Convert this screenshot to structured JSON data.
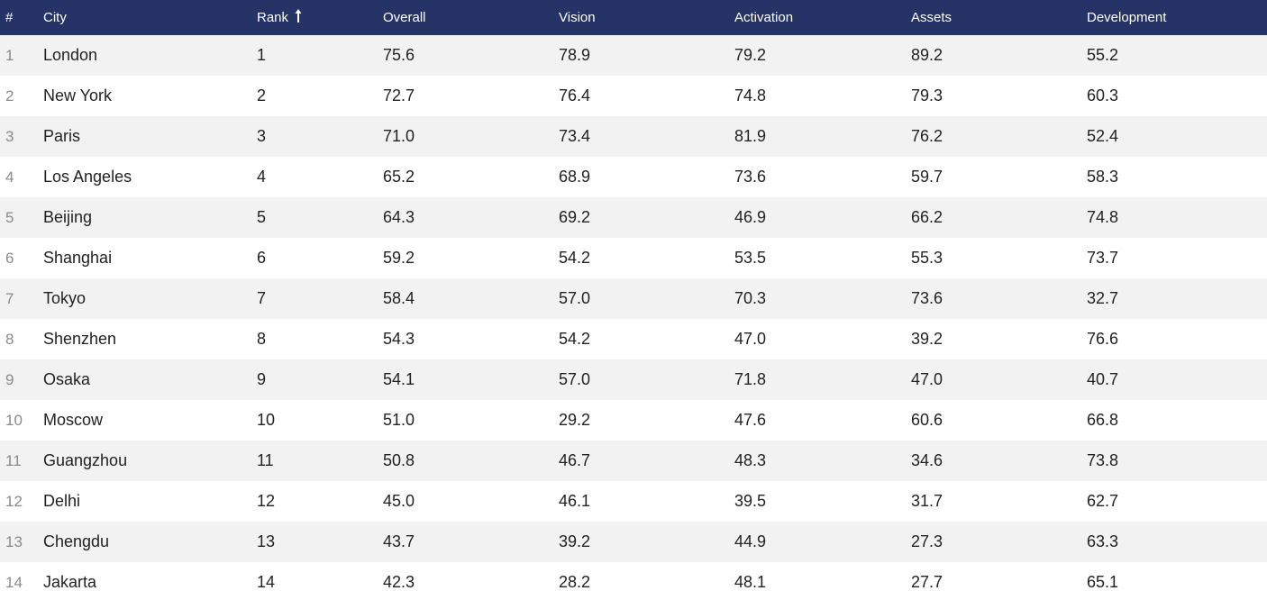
{
  "table": {
    "columns": {
      "index": "#",
      "city": "City",
      "rank": "Rank",
      "overall": "Overall",
      "vision": "Vision",
      "activation": "Activation",
      "assets": "Assets",
      "development": "Development"
    },
    "sort_icon": "arrow-up-icon",
    "header_color": "#253366",
    "rows": [
      {
        "index": "1",
        "city": "London",
        "rank": "1",
        "overall": "75.6",
        "vision": "78.9",
        "activation": "79.2",
        "assets": "89.2",
        "development": "55.2"
      },
      {
        "index": "2",
        "city": "New York",
        "rank": "2",
        "overall": "72.7",
        "vision": "76.4",
        "activation": "74.8",
        "assets": "79.3",
        "development": "60.3"
      },
      {
        "index": "3",
        "city": "Paris",
        "rank": "3",
        "overall": "71.0",
        "vision": "73.4",
        "activation": "81.9",
        "assets": "76.2",
        "development": "52.4"
      },
      {
        "index": "4",
        "city": "Los Angeles",
        "rank": "4",
        "overall": "65.2",
        "vision": "68.9",
        "activation": "73.6",
        "assets": "59.7",
        "development": "58.3"
      },
      {
        "index": "5",
        "city": "Beijing",
        "rank": "5",
        "overall": "64.3",
        "vision": "69.2",
        "activation": "46.9",
        "assets": "66.2",
        "development": "74.8"
      },
      {
        "index": "6",
        "city": "Shanghai",
        "rank": "6",
        "overall": "59.2",
        "vision": "54.2",
        "activation": "53.5",
        "assets": "55.3",
        "development": "73.7"
      },
      {
        "index": "7",
        "city": "Tokyo",
        "rank": "7",
        "overall": "58.4",
        "vision": "57.0",
        "activation": "70.3",
        "assets": "73.6",
        "development": "32.7"
      },
      {
        "index": "8",
        "city": "Shenzhen",
        "rank": "8",
        "overall": "54.3",
        "vision": "54.2",
        "activation": "47.0",
        "assets": "39.2",
        "development": "76.6"
      },
      {
        "index": "9",
        "city": "Osaka",
        "rank": "9",
        "overall": "54.1",
        "vision": "57.0",
        "activation": "71.8",
        "assets": "47.0",
        "development": "40.7"
      },
      {
        "index": "10",
        "city": "Moscow",
        "rank": "10",
        "overall": "51.0",
        "vision": "29.2",
        "activation": "47.6",
        "assets": "60.6",
        "development": "66.8"
      },
      {
        "index": "11",
        "city": "Guangzhou",
        "rank": "11",
        "overall": "50.8",
        "vision": "46.7",
        "activation": "48.3",
        "assets": "34.6",
        "development": "73.8"
      },
      {
        "index": "12",
        "city": "Delhi",
        "rank": "12",
        "overall": "45.0",
        "vision": "46.1",
        "activation": "39.5",
        "assets": "31.7",
        "development": "62.7"
      },
      {
        "index": "13",
        "city": "Chengdu",
        "rank": "13",
        "overall": "43.7",
        "vision": "39.2",
        "activation": "44.9",
        "assets": "27.3",
        "development": "63.3"
      },
      {
        "index": "14",
        "city": "Jakarta",
        "rank": "14",
        "overall": "42.3",
        "vision": "28.2",
        "activation": "48.1",
        "assets": "27.7",
        "development": "65.1"
      }
    ]
  }
}
